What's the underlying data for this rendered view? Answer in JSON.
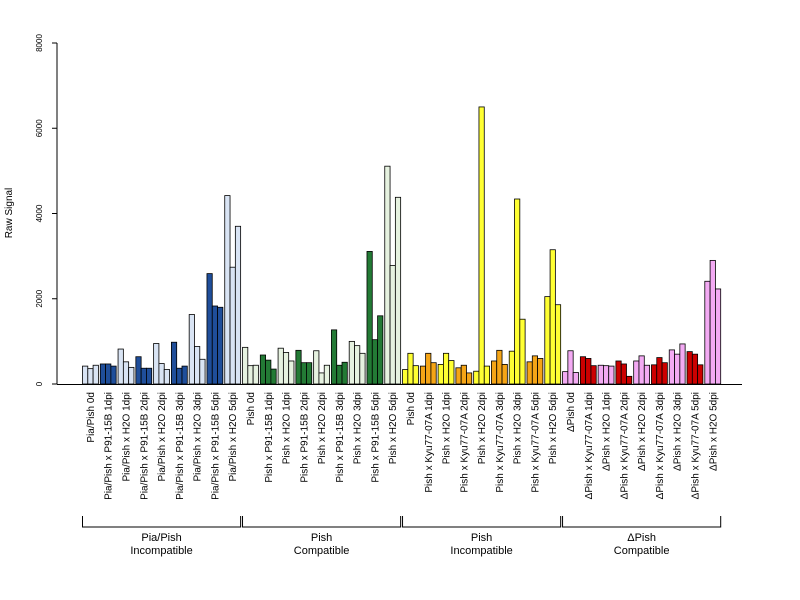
{
  "chart_data": {
    "type": "bar",
    "title": "",
    "xlabel": "",
    "ylabel": "Raw Signal",
    "ylim": [
      0,
      8000
    ],
    "yticks": [
      0,
      2000,
      4000,
      6000,
      8000
    ],
    "grid": false,
    "legend": "none",
    "categories": [
      {
        "label": "Pia/Pish 0d",
        "color": "#d9e4f4",
        "values": [
          420,
          360,
          440
        ]
      },
      {
        "label": "Pia/Pish x P91-15B 1dpi",
        "color": "#1f4e9a",
        "values": [
          470,
          470,
          420
        ]
      },
      {
        "label": "Pia/Pish x H2O 1dpi",
        "color": "#d9e4f4",
        "values": [
          820,
          520,
          390
        ]
      },
      {
        "label": "Pia/Pish x P91-15B 2dpi",
        "color": "#1f4e9a",
        "values": [
          640,
          370,
          370
        ]
      },
      {
        "label": "Pia/Pish x H2O 2dpi",
        "color": "#d9e4f4",
        "values": [
          950,
          480,
          340
        ]
      },
      {
        "label": "Pia/Pish x P91-15B 3dpi",
        "color": "#1f4e9a",
        "values": [
          980,
          370,
          420
        ]
      },
      {
        "label": "Pia/Pish x H2O 3dpi",
        "color": "#d9e4f4",
        "values": [
          1630,
          880,
          580
        ]
      },
      {
        "label": "Pia/Pish x P91-15B 5dpi",
        "color": "#1f4e9a",
        "values": [
          2590,
          1830,
          1800
        ]
      },
      {
        "label": "Pia/Pish x H2O 5dpi",
        "color": "#d9e4f4",
        "values": [
          4420,
          2740,
          3700
        ]
      },
      {
        "label": "Pish 0d",
        "color": "#e6f2e0",
        "values": [
          860,
          430,
          440
        ]
      },
      {
        "label": "Pish x P91-15B 1dpi",
        "color": "#237a35",
        "values": [
          680,
          560,
          350
        ]
      },
      {
        "label": "Pish x H2O 1dpi",
        "color": "#e6f2e0",
        "values": [
          840,
          740,
          540
        ]
      },
      {
        "label": "Pish x P91-15B 2dpi",
        "color": "#237a35",
        "values": [
          790,
          500,
          500
        ]
      },
      {
        "label": "Pish x H2O 2dpi",
        "color": "#e6f2e0",
        "values": [
          780,
          260,
          440
        ]
      },
      {
        "label": "Pish x P91-15B 3dpi",
        "color": "#237a35",
        "values": [
          1270,
          440,
          510
        ]
      },
      {
        "label": "Pish x H2O 3dpi",
        "color": "#e6f2e0",
        "values": [
          1000,
          900,
          720
        ]
      },
      {
        "label": "Pish x P91-15B 5dpi",
        "color": "#237a35",
        "values": [
          3110,
          1040,
          1600
        ]
      },
      {
        "label": "Pish x H2O 5dpi",
        "color": "#e6f2e0",
        "values": [
          5110,
          2780,
          4380
        ]
      },
      {
        "label": "Pish 0d",
        "color": "#ffff33",
        "values": [
          340,
          720,
          430
        ]
      },
      {
        "label": "Pish x Kyu77-07A 1dpi",
        "color": "#f5a516",
        "values": [
          420,
          720,
          500
        ]
      },
      {
        "label": "Pish x H2O 1dpi",
        "color": "#ffff33",
        "values": [
          460,
          720,
          550
        ]
      },
      {
        "label": "Pish x Kyu77-07A 2dpi",
        "color": "#f5a516",
        "values": [
          380,
          440,
          260
        ]
      },
      {
        "label": "Pish x H2O 2dpi",
        "color": "#ffff33",
        "values": [
          300,
          6500,
          420
        ]
      },
      {
        "label": "Pish x Kyu77-07A 3dpi",
        "color": "#f5a516",
        "values": [
          540,
          790,
          460
        ]
      },
      {
        "label": "Pish x H2O 3dpi",
        "color": "#ffff33",
        "values": [
          770,
          4340,
          1520
        ]
      },
      {
        "label": "Pish x Kyu77-07A 5dpi",
        "color": "#f5a516",
        "values": [
          520,
          660,
          600
        ]
      },
      {
        "label": "Pish x H2O 5dpi",
        "color": "#ffff33",
        "values": [
          2050,
          3150,
          1860
        ]
      },
      {
        "label": "ΔPish 0d",
        "color": "#f3aaf3",
        "values": [
          290,
          780,
          270
        ]
      },
      {
        "label": "ΔPish x Kyu77-07A 1dpi",
        "color": "#cc0000",
        "values": [
          640,
          600,
          430
        ]
      },
      {
        "label": "ΔPish x H2O 1dpi",
        "color": "#f3aaf3",
        "values": [
          440,
          430,
          420
        ]
      },
      {
        "label": "ΔPish x Kyu77-07A 2dpi",
        "color": "#cc0000",
        "values": [
          540,
          470,
          180
        ]
      },
      {
        "label": "ΔPish x H2O 2dpi",
        "color": "#f3aaf3",
        "values": [
          540,
          660,
          440
        ]
      },
      {
        "label": "ΔPish x Kyu77-07A 3dpi",
        "color": "#cc0000",
        "values": [
          450,
          620,
          500
        ]
      },
      {
        "label": "ΔPish x H2O 3dpi",
        "color": "#f3aaf3",
        "values": [
          800,
          700,
          940
        ]
      },
      {
        "label": "ΔPish x Kyu77-07A 5dpi",
        "color": "#cc0000",
        "values": [
          760,
          700,
          450
        ]
      },
      {
        "label": "ΔPish x H2O 5dpi",
        "color": "#f3aaf3",
        "values": [
          2410,
          2900,
          2230
        ]
      }
    ],
    "groups": [
      {
        "line1": "Pia/Pish",
        "line2": "Incompatible",
        "from": 0,
        "to": 8
      },
      {
        "line1": "Pish",
        "line2": "Compatible",
        "from": 9,
        "to": 17
      },
      {
        "line1": "Pish",
        "line2": "Incompatible",
        "from": 18,
        "to": 26
      },
      {
        "line1": "ΔPish",
        "line2": "Compatible",
        "from": 27,
        "to": 35
      }
    ]
  }
}
